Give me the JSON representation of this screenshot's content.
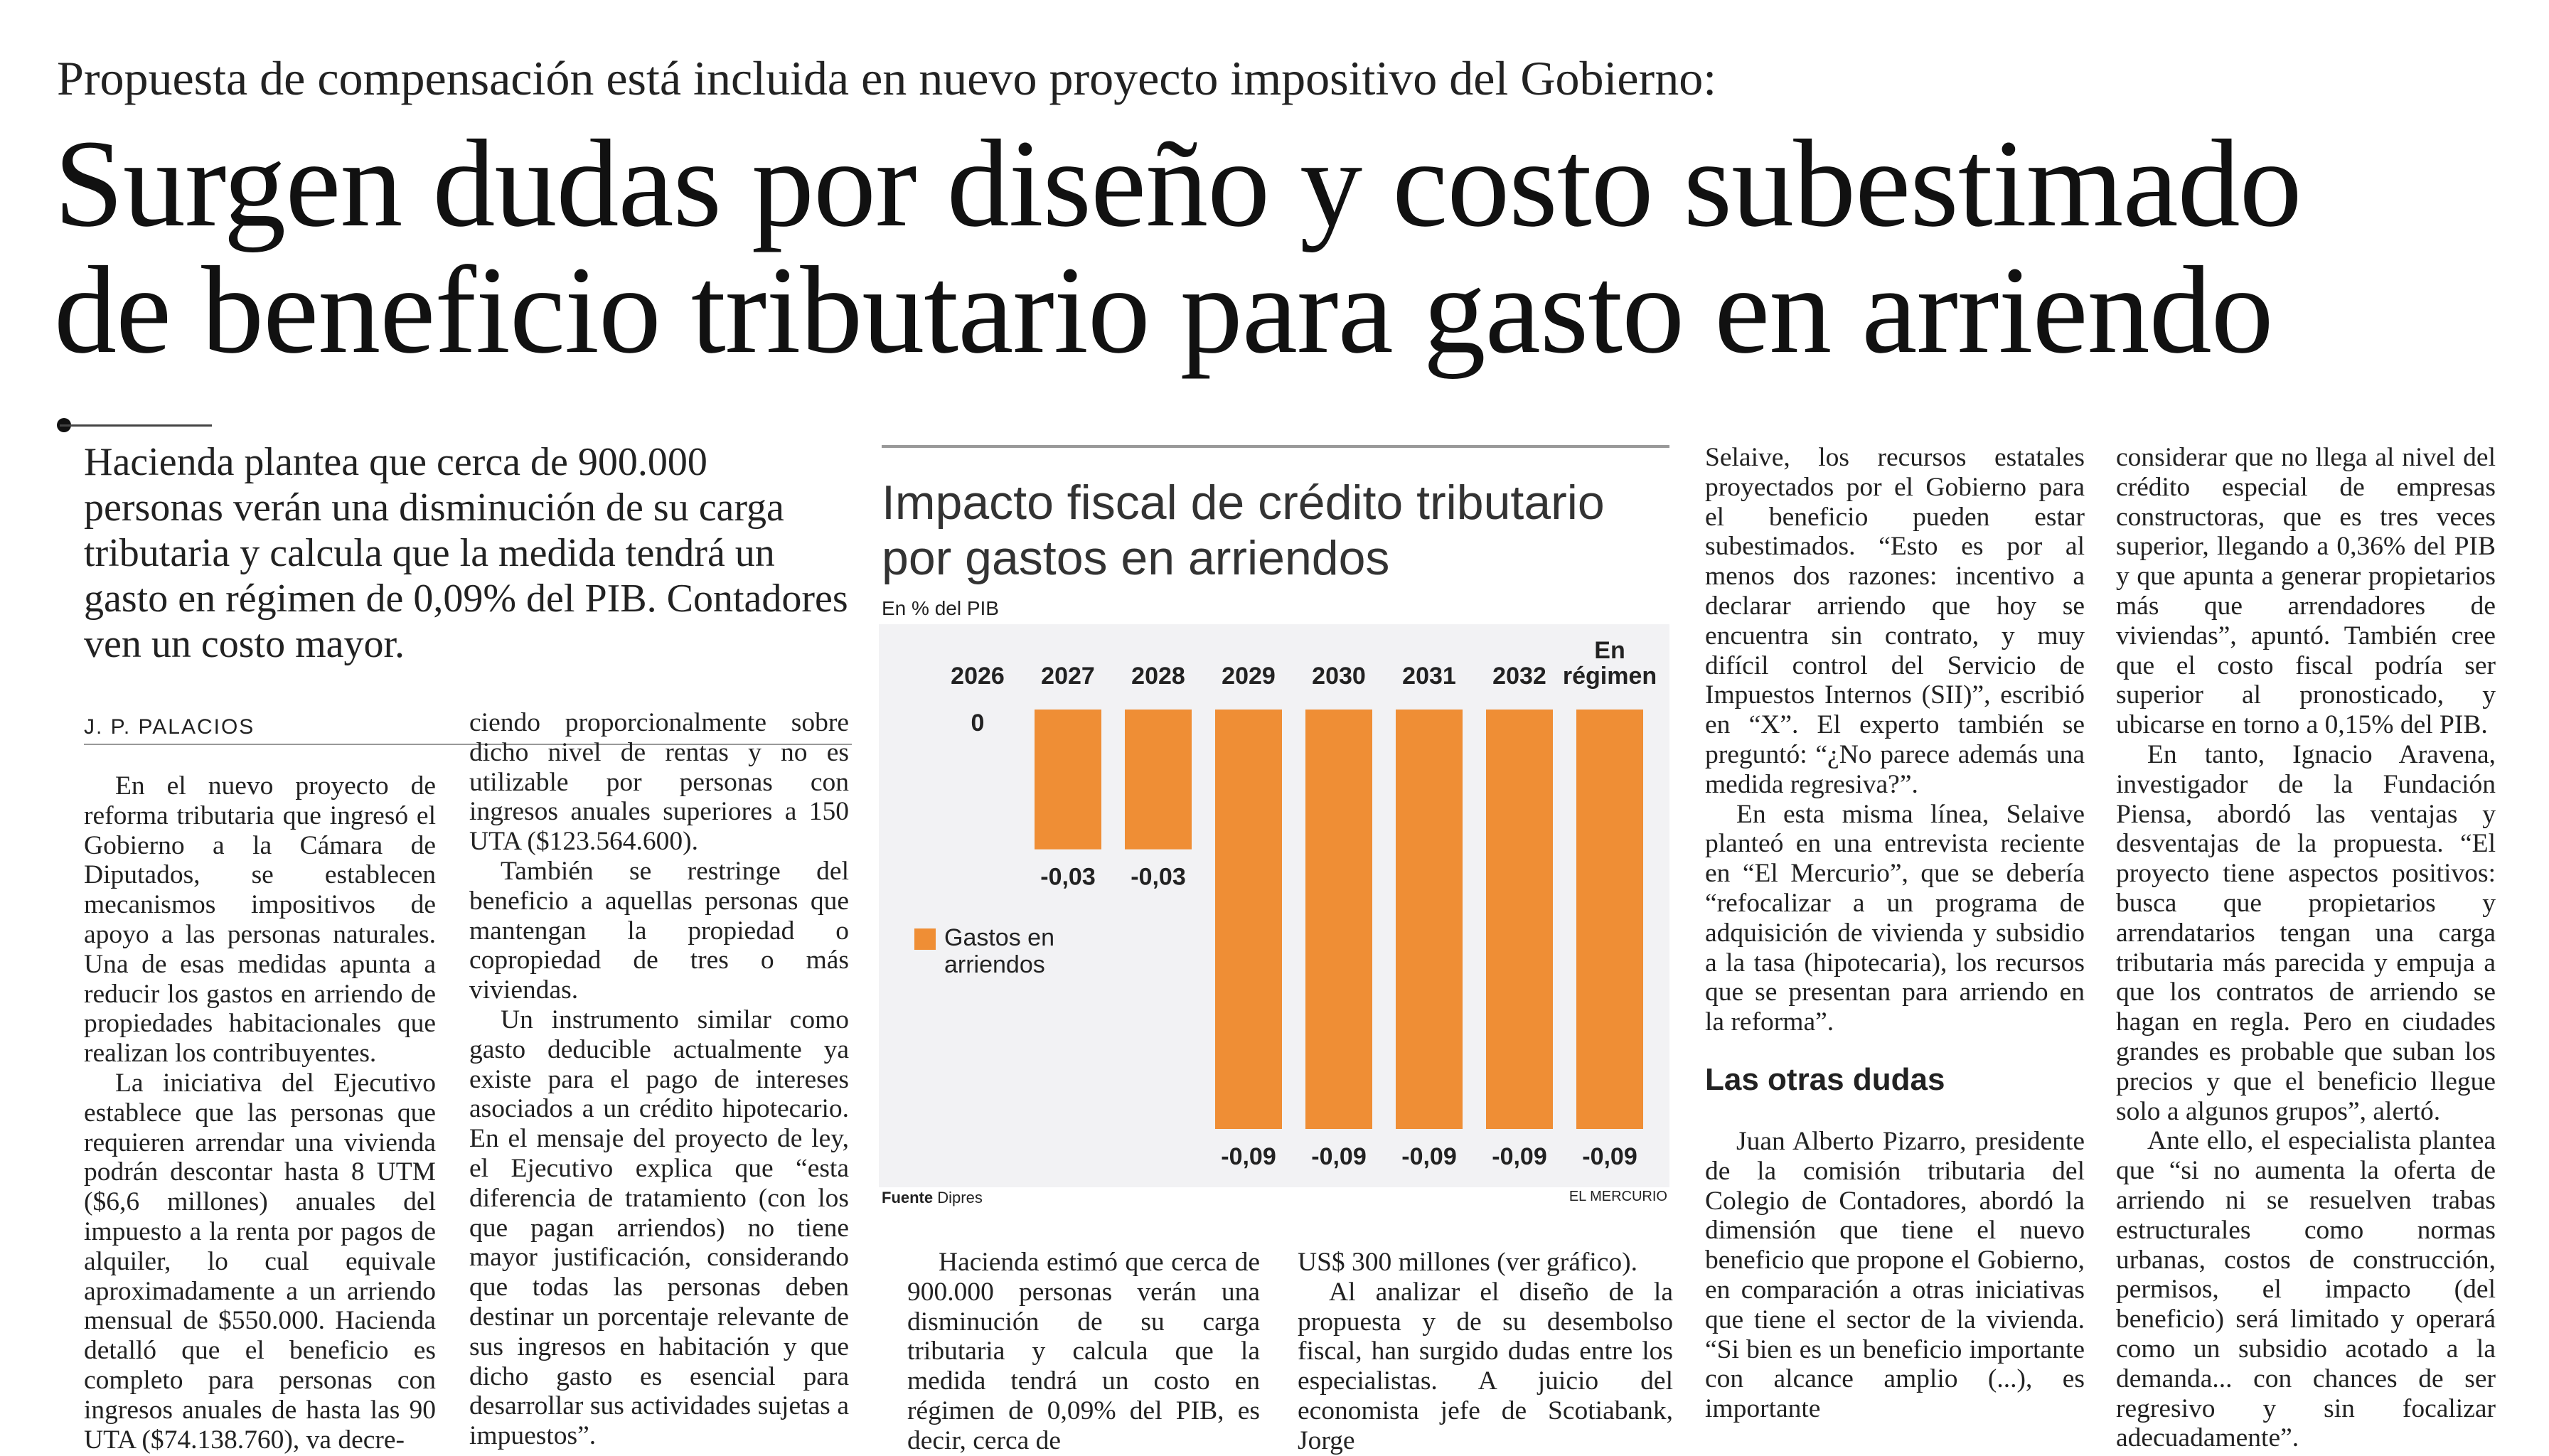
{
  "kicker": "Propuesta de compensación está incluida en nuevo proyecto impositivo del Gobierno:",
  "headline": {
    "line1": "Surgen dudas por diseño y costo subestimado",
    "line2": "de beneficio tributario para gasto en arriendo"
  },
  "lead": "Hacienda plantea que cerca de 900.000 personas verán una disminución de su carga tributaria y calcula que la medida tendrá un gasto en régimen de 0,09% del PIB. Contadores ven un costo mayor.",
  "byline": "J. P. PALACIOS",
  "col1": [
    "En el nuevo proyecto de reforma tributaria que ingresó el Gobierno a la Cámara de Diputados, se establecen mecanismos impositivos de apoyo a las personas naturales. Una de esas medidas apunta a reducir los gastos en arriendo de propiedades habitacionales que realizan los contribuyentes.",
    "La iniciativa del Ejecutivo establece que las personas que requieren arrendar una vivienda podrán descontar hasta 8 UTM ($6,6 millones) anuales del impuesto a la renta por pagos de alquiler, lo cual equivale aproximadamente a un arriendo mensual de $550.000. Hacienda detalló que el beneficio es completo para personas con ingresos anuales de hasta las 90 UTA ($74.138.760), va decre-"
  ],
  "col2": [
    "ciendo proporcionalmente sobre dicho nivel de rentas y no es utilizable por personas con ingresos anuales superiores a 150 UTA ($123.564.600).",
    "También se restringe del beneficio a aquellas personas que mantengan la propiedad o copropiedad de tres o más viviendas.",
    "Un instrumento similar como gasto deducible actualmente ya existe para el pago de intereses asociados a un crédito hipotecario. En el mensaje del proyecto de ley, el Ejecutivo explica que “esta diferencia de tratamiento (con los que pagan arriendos) no tiene mayor justificación, considerando que todas las personas deben destinar un porcentaje relevante de sus ingresos en habitación y que dicho gasto es esencial para desarrollar sus actividades sujetas a impuestos”."
  ],
  "col3": [
    "Hacienda estimó que cerca de 900.000 personas verán una disminución de su carga tributaria y calcula que la medida tendrá un costo en régimen de 0,09% del PIB, es decir, cerca de"
  ],
  "col4": [
    "US$ 300 millones (ver gráfico).",
    "Al analizar el diseño de la propuesta y de su desembolso fiscal, han surgido dudas entre los especialistas. A juicio del economista jefe de Scotiabank, Jorge"
  ],
  "col5": {
    "paras_a": [
      "Selaive, los recursos estatales proyectados por el Gobierno para el beneficio pueden estar subestimados. “Esto es por al menos dos razones: incentivo a declarar arriendo que hoy se encuentra sin contrato, y muy difícil control del Servicio de Impuestos Internos (SII)”, escribió en “X”. El experto también se preguntó: “¿No parece además una medida regresiva?”.",
      "En esta misma línea, Selaive planteó en una entrevista reciente en “El Mercurio”, que se debería “refocalizar a un programa de adquisición de vivienda y subsidio a la tasa (hipotecaria), los recursos que se presentan para arriendo en la reforma”."
    ],
    "subhead": "Las otras dudas",
    "paras_b": [
      "Juan Alberto Pizarro, presidente de la comisión tributaria del Colegio de Contadores, abordó la dimensión que tiene el nuevo beneficio que propone el Gobierno, en comparación a otras iniciativas que tiene el sector de la vivienda. “Si bien es un beneficio importante con alcance amplio (...), es importante"
    ]
  },
  "col6": [
    "considerar que no llega al nivel del crédito especial de empresas constructoras, que es tres veces superior, llegando a 0,36% del PIB y que apunta a generar propietarios más que arrendadores de viviendas”, apuntó. También cree que el costo fiscal podría ser superior al pronosticado, y ubicarse en torno a 0,15% del PIB.",
    "En tanto, Ignacio Aravena, investigador de la Fundación Piensa, abordó las ventajas y desventajas de la propuesta. “El proyecto tiene aspectos positivos: busca que propietarios y arrendatarios tengan una carga tributaria más parecida y empuja a que los contratos de arriendo se hagan en regla. Pero en ciudades grandes es probable que suban los precios y que el beneficio llegue solo a algunos grupos”, alertó.",
    "Ante ello, el especialista plantea que “si no aumenta la oferta de arriendo ni se resuelven trabas estructurales como normas urbanas, costos de construcción, permisos, el impacto (del beneficio) será limitado y operará como un subsidio acotado a la demanda... con chances de ser regresivo y sin focalizar adecuadamente”."
  ],
  "chart_data": {
    "type": "bar",
    "title": "Impacto fiscal de crédito tributario por gastos en arriendos",
    "subtitle": "En % del PIB",
    "categories": [
      "2026",
      "2027",
      "2028",
      "2029",
      "2030",
      "2031",
      "2032",
      "En régimen"
    ],
    "series": [
      {
        "name": "Gastos en arriendos",
        "values": [
          0,
          -0.03,
          -0.03,
          -0.09,
          -0.09,
          -0.09,
          -0.09,
          -0.09
        ],
        "labels": [
          "0",
          "-0,03",
          "-0,03",
          "-0,09",
          "-0,09",
          "-0,09",
          "-0,09",
          "-0,09"
        ],
        "color": "#ef8e35"
      }
    ],
    "ylim": [
      -0.09,
      0
    ],
    "grid": false,
    "legend_position": "left",
    "source_label": "Fuente",
    "source": "Dipres",
    "brand": "EL MERCURIO",
    "background": "#f2f2f4"
  }
}
